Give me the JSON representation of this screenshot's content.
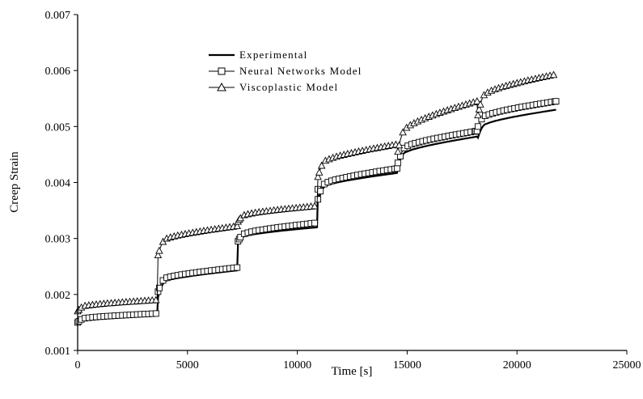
{
  "chart_data": {
    "type": "line",
    "title": "",
    "xlabel": "Time [s]",
    "ylabel": "Creep Strain",
    "xlim": [
      0,
      25000
    ],
    "ylim": [
      0.001,
      0.007
    ],
    "xticks": [
      0,
      5000,
      10000,
      15000,
      20000,
      25000
    ],
    "xtick_labels": [
      "0",
      "5000",
      "10000",
      "15000",
      "20000",
      "25000"
    ],
    "yticks": [
      0.001,
      0.002,
      0.003,
      0.004,
      0.005,
      0.006,
      0.007
    ],
    "ytick_labels": [
      "0.001",
      "0.002",
      "0.003",
      "0.004",
      "0.005",
      "0.006",
      "0.007"
    ],
    "grid": false,
    "legend_position": "top-center",
    "stage_breaks": [
      0,
      3640,
      7280,
      10920,
      14560,
      18200,
      21800
    ],
    "series": [
      {
        "name": "Experimental",
        "marker": "none",
        "stages": [
          {
            "start": 0.0015,
            "knee": 0.00157,
            "end": 0.00164
          },
          {
            "start": 0.00195,
            "knee": 0.00225,
            "end": 0.00243
          },
          {
            "start": 0.00293,
            "knee": 0.00305,
            "end": 0.0032
          },
          {
            "start": 0.00365,
            "knee": 0.00395,
            "end": 0.00417,
            "dip": 0.00378
          },
          {
            "start": 0.0043,
            "knee": 0.00455,
            "end": 0.00482,
            "dip": 0.00425
          },
          {
            "start": 0.0048,
            "knee": 0.00505,
            "end": 0.0053
          }
        ]
      },
      {
        "name": "Neural Networks Model",
        "marker": "square",
        "stages": [
          {
            "start": 0.0015,
            "knee": 0.00158,
            "end": 0.00166
          },
          {
            "start": 0.00205,
            "knee": 0.0023,
            "end": 0.00248
          },
          {
            "start": 0.00295,
            "knee": 0.0031,
            "end": 0.00328
          },
          {
            "start": 0.0037,
            "knee": 0.004,
            "end": 0.00425,
            "dip": 0.00388
          },
          {
            "start": 0.0043,
            "knee": 0.00465,
            "end": 0.00492,
            "dip": 0.00435
          },
          {
            "start": 0.005,
            "knee": 0.0052,
            "end": 0.00545
          }
        ]
      },
      {
        "name": "Viscoplastic Model",
        "marker": "triangle",
        "stages": [
          {
            "start": 0.0017,
            "knee": 0.0018,
            "end": 0.0019
          },
          {
            "start": 0.0027,
            "knee": 0.003,
            "end": 0.00322
          },
          {
            "start": 0.0033,
            "knee": 0.00343,
            "end": 0.00358
          },
          {
            "start": 0.0041,
            "knee": 0.0044,
            "end": 0.00468
          },
          {
            "start": 0.00455,
            "knee": 0.00498,
            "end": 0.00545
          },
          {
            "start": 0.0052,
            "knee": 0.0056,
            "end": 0.00593
          }
        ]
      }
    ]
  }
}
